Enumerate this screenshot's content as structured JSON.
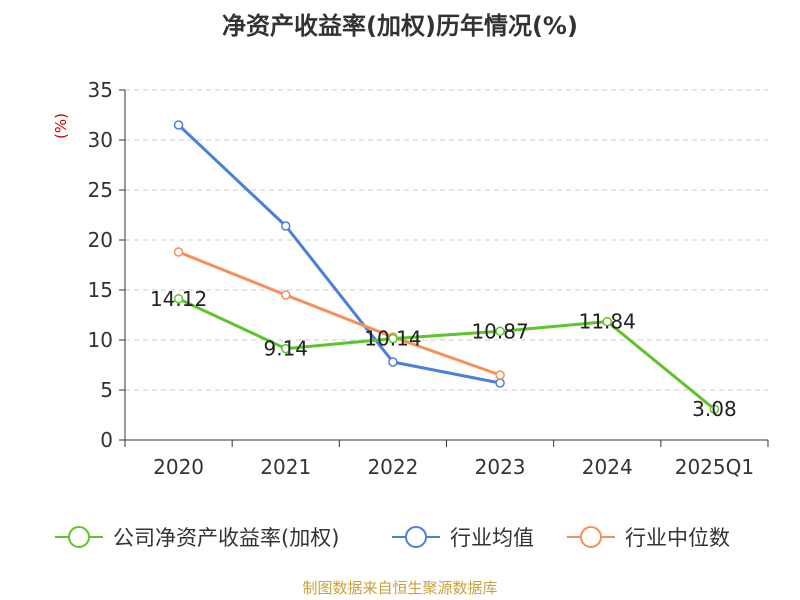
{
  "chart_data": {
    "type": "line",
    "title": "净资产收益率(加权)历年情况(%)",
    "ylabel": "(%)",
    "categories": [
      "2020",
      "2021",
      "2022",
      "2023",
      "2024",
      "2025Q1"
    ],
    "ylim": [
      0,
      35
    ],
    "yticks": [
      0,
      5,
      10,
      15,
      20,
      25,
      30,
      35
    ],
    "grid": true,
    "legend_position": "bottom",
    "series": [
      {
        "name": "公司净资产收益率(加权)",
        "color": "#5cc52a",
        "values": [
          14.12,
          9.14,
          10.14,
          10.87,
          11.84,
          3.08
        ],
        "labels": [
          "14.12",
          "9.14",
          "10.14",
          "10.87",
          "11.84",
          "3.08"
        ]
      },
      {
        "name": "行业均值",
        "color": "#4a7fdb",
        "values": [
          31.5,
          21.4,
          7.8,
          5.7,
          null,
          null
        ]
      },
      {
        "name": "行业中位数",
        "color": "#f79058",
        "values": [
          18.8,
          14.5,
          10.3,
          6.5,
          null,
          null
        ]
      }
    ],
    "source": "制图数据来自恒生聚源数据库"
  }
}
